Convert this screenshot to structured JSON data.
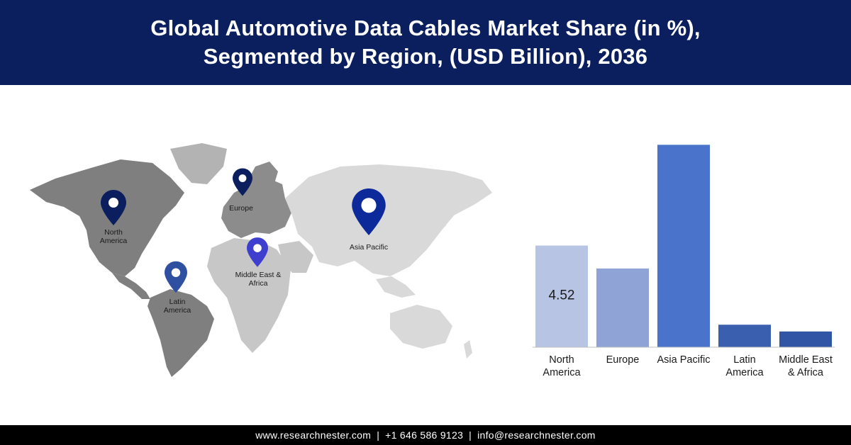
{
  "header": {
    "title_line1": "Global Automotive Data Cables Market Share (in %),",
    "title_line2": "Segmented by Region, (USD Billion), 2036"
  },
  "map": {
    "pins": [
      {
        "label_lines": [
          "North",
          "America"
        ],
        "color": "#0b1f5e"
      },
      {
        "label_lines": [
          "Europe"
        ],
        "color": "#0b1f5e"
      },
      {
        "label_lines": [
          "Asia Pacific"
        ],
        "color": "#0d2a9b"
      },
      {
        "label_lines": [
          "Middle East &",
          "Africa"
        ],
        "color": "#3e3fcf"
      },
      {
        "label_lines": [
          "Latin",
          "America"
        ],
        "color": "#2f4fa0"
      }
    ]
  },
  "chart_data": {
    "type": "bar",
    "categories": [
      "North America",
      "Europe",
      "Asia Pacific",
      "Latin America",
      "Middle East & Africa"
    ],
    "category_label_lines": [
      [
        "North",
        "America"
      ],
      [
        "Europe"
      ],
      [
        "Asia Pacific"
      ],
      [
        "Latin",
        "America"
      ],
      [
        "Middle East",
        "& Africa"
      ]
    ],
    "values": [
      4.52,
      3.5,
      9.0,
      1.0,
      0.7
    ],
    "data_labels": [
      "4.52",
      "",
      "",
      "",
      ""
    ],
    "colors": [
      "#b7c4e4",
      "#8fa3d6",
      "#4a74cc",
      "#3a5fae",
      "#2f55a4"
    ],
    "ylim": [
      0,
      9.2
    ],
    "title": "",
    "xlabel": "",
    "ylabel": "",
    "grid": false,
    "legend": "none"
  },
  "footer": {
    "website": "www.researchnester.com",
    "phone": "+1 646 586 9123",
    "email": "info@researchnester.com",
    "separator": "|"
  }
}
